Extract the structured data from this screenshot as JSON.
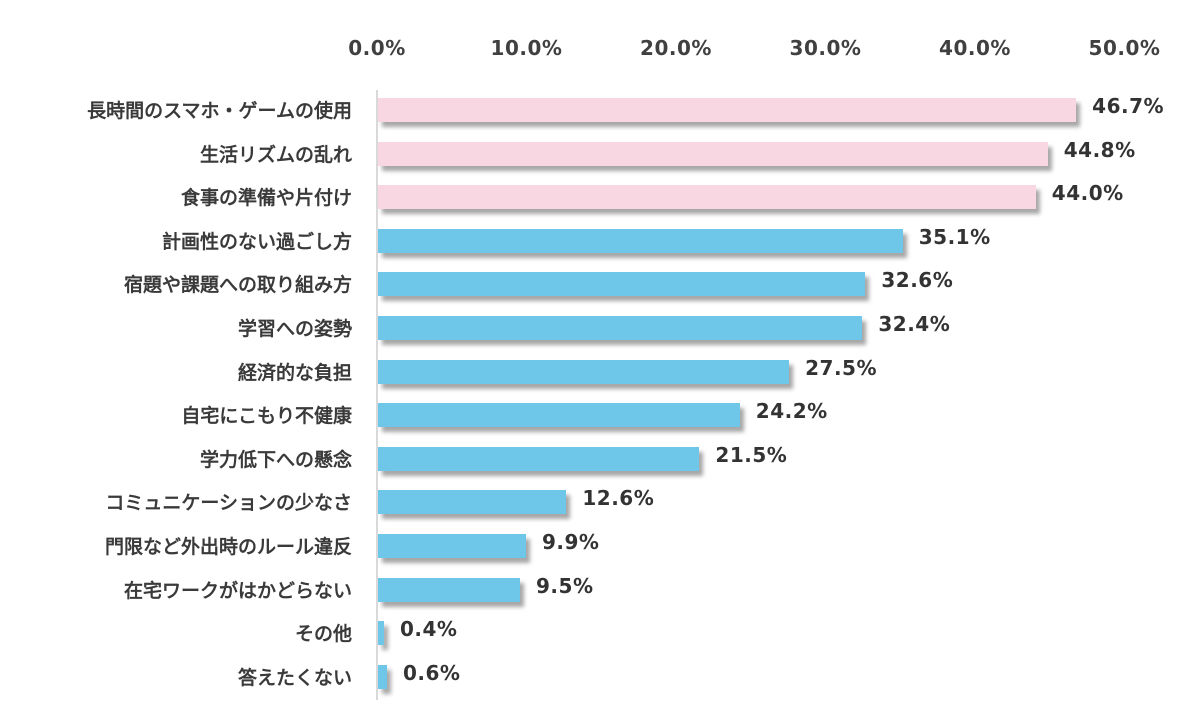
{
  "chart_data": {
    "type": "bar",
    "orientation": "horizontal",
    "title": "",
    "xlabel": "",
    "ylabel": "",
    "xlim": [
      0,
      50
    ],
    "x_ticks": [
      "0.0%",
      "10.0%",
      "20.0%",
      "30.0%",
      "40.0%",
      "50.0%"
    ],
    "x_tick_position": "top",
    "grid": false,
    "legend": null,
    "categories": [
      "長時間のスマホ・ゲームの使用",
      "生活リズムの乱れ",
      "食事の準備や片付け",
      "計画性のない過ごし方",
      "宿題や課題への取り組み方",
      "学習への姿勢",
      "経済的な負担",
      "自宅にこもり不健康",
      "学力低下への懸念",
      "コミュニケーションの少なさ",
      "門限など外出時のルール違反",
      "在宅ワークがはかどらない",
      "その他",
      "答えたくない"
    ],
    "values": [
      46.7,
      44.8,
      44.0,
      35.1,
      32.6,
      32.4,
      27.5,
      24.2,
      21.5,
      12.6,
      9.9,
      9.5,
      0.4,
      0.6
    ],
    "value_labels": [
      "46.7%",
      "44.8%",
      "44.0%",
      "35.1%",
      "32.6%",
      "32.4%",
      "27.5%",
      "24.2%",
      "21.5%",
      "12.6%",
      "9.9%",
      "9.5%",
      "0.4%",
      "0.6%"
    ],
    "bar_colors": [
      "#f8d7e3",
      "#f8d7e3",
      "#f8d7e3",
      "#6ec6e8",
      "#6ec6e8",
      "#6ec6e8",
      "#6ec6e8",
      "#6ec6e8",
      "#6ec6e8",
      "#6ec6e8",
      "#6ec6e8",
      "#6ec6e8",
      "#6ec6e8",
      "#6ec6e8"
    ],
    "highlight_color": "#f8d7e3",
    "base_color": "#6ec6e8"
  }
}
